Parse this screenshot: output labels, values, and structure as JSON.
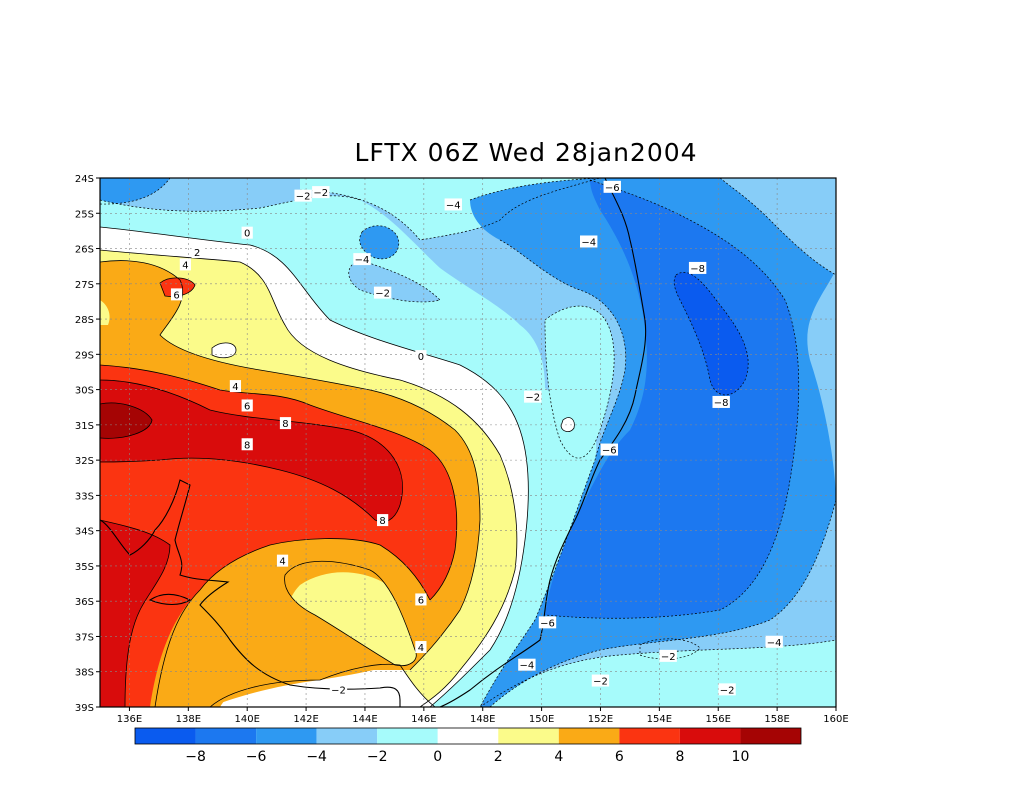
{
  "title": "LFTX 06Z Wed 28jan2004",
  "axes": {
    "lat_labels": [
      "24S",
      "25S",
      "26S",
      "27S",
      "28S",
      "29S",
      "30S",
      "31S",
      "32S",
      "33S",
      "34S",
      "35S",
      "36S",
      "37S",
      "38S",
      "39S"
    ],
    "lon_labels": [
      "136E",
      "138E",
      "140E",
      "142E",
      "144E",
      "146E",
      "148E",
      "150E",
      "152E",
      "154E",
      "156E",
      "158E",
      "160E"
    ]
  },
  "map": {
    "variable": "LFTX",
    "lat_range": [
      -39,
      -24
    ],
    "lon_range": [
      135,
      160
    ],
    "grid": true,
    "contour_labels": [
      {
        "text": "-2",
        "lon": 141.9,
        "lat": -24.5
      },
      {
        "text": "-2",
        "lon": 142.5,
        "lat": -24.4
      },
      {
        "text": "-4",
        "lon": 147.0,
        "lat": -24.75
      },
      {
        "text": "-6",
        "lon": 152.4,
        "lat": -24.25
      },
      {
        "text": "0",
        "lon": 140.0,
        "lat": -25.55
      },
      {
        "text": "-4",
        "lon": 151.6,
        "lat": -25.8
      },
      {
        "text": "2",
        "lon": 138.3,
        "lat": -26.1
      },
      {
        "text": "-4",
        "lon": 143.9,
        "lat": -26.3
      },
      {
        "text": "4",
        "lon": 137.9,
        "lat": -26.45
      },
      {
        "text": "-8",
        "lon": 155.3,
        "lat": -26.55
      },
      {
        "text": "-2",
        "lon": 144.6,
        "lat": -27.25
      },
      {
        "text": "6",
        "lon": 137.6,
        "lat": -27.3
      },
      {
        "text": "0",
        "lon": 145.9,
        "lat": -29.05
      },
      {
        "text": "4",
        "lon": 139.6,
        "lat": -29.9
      },
      {
        "text": "-2",
        "lon": 149.7,
        "lat": -30.2
      },
      {
        "text": "6",
        "lon": 140.0,
        "lat": -30.45
      },
      {
        "text": "-8",
        "lon": 156.1,
        "lat": -30.35
      },
      {
        "text": "8",
        "lon": 141.3,
        "lat": -30.95
      },
      {
        "text": "8",
        "lon": 140.0,
        "lat": -31.55
      },
      {
        "text": "-6",
        "lon": 152.3,
        "lat": -31.7
      },
      {
        "text": "8",
        "lon": 144.6,
        "lat": -33.7
      },
      {
        "text": "4",
        "lon": 141.2,
        "lat": -34.85
      },
      {
        "text": "6",
        "lon": 145.9,
        "lat": -35.95
      },
      {
        "text": "-6",
        "lon": 150.2,
        "lat": -36.6
      },
      {
        "text": "-4",
        "lon": 157.9,
        "lat": -37.15
      },
      {
        "text": "4",
        "lon": 145.9,
        "lat": -37.3
      },
      {
        "text": "-2",
        "lon": 154.3,
        "lat": -37.55
      },
      {
        "text": "-4",
        "lon": 149.5,
        "lat": -37.8
      },
      {
        "text": "-2",
        "lon": 152.0,
        "lat": -38.25
      },
      {
        "text": "-2",
        "lon": 143.1,
        "lat": -38.5
      },
      {
        "text": "-2",
        "lon": 156.3,
        "lat": -38.5
      }
    ]
  },
  "legend": {
    "colors": [
      "#0a5bef",
      "#1c78f0",
      "#2e99f2",
      "#87cdf8",
      "#a6fbfb",
      "#ffffff",
      "#fbfb8a",
      "#faaa16",
      "#fb3411",
      "#d90c0c",
      "#a50404"
    ],
    "tick_labels": [
      "-8",
      "-6",
      "-4",
      "-2",
      "0",
      "2",
      "4",
      "6",
      "8",
      "10"
    ]
  }
}
